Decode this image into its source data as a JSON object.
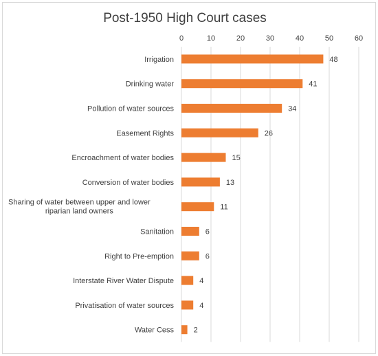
{
  "chart_data": {
    "type": "bar",
    "orientation": "horizontal",
    "title": "Post-1950 High Court cases",
    "categories": [
      "Irrigation",
      "Drinking water",
      "Pollution of water sources",
      "Easement Rights",
      "Encroachment of water bodies",
      "Conversion of water bodies",
      "Sharing of water between upper and lower riparian land owners",
      "Sanitation",
      "Right to Pre-emption",
      "Interstate River Water Dispute",
      "Privatisation of water sources",
      "Water Cess"
    ],
    "values": [
      48,
      41,
      34,
      26,
      15,
      13,
      11,
      6,
      6,
      4,
      4,
      2
    ],
    "xlim": [
      0,
      60
    ],
    "xticks": [
      0,
      10,
      20,
      30,
      40,
      50,
      60
    ],
    "xaxis_position": "top",
    "data_labels": true,
    "grid": "vertical",
    "legend": "none",
    "bar_color": "#ED7D31",
    "gridline_color": "#D9D9D9",
    "label_color": "#404040"
  }
}
